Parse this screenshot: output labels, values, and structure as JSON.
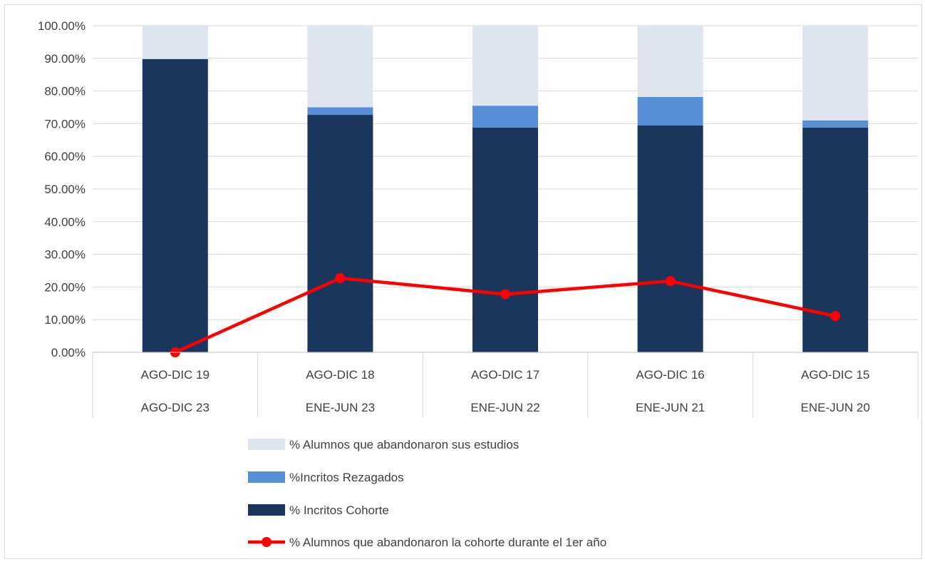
{
  "chart_data": {
    "type": "bar",
    "stacked": true,
    "categories": [
      [
        "AGO-DIC 19",
        "AGO-DIC 23"
      ],
      [
        "AGO-DIC 18",
        "ENE-JUN 23"
      ],
      [
        "AGO-DIC 17",
        "ENE-JUN 22"
      ],
      [
        "AGO-DIC 16",
        "ENE-JUN 21"
      ],
      [
        "AGO-DIC 15",
        "ENE-JUN 20"
      ]
    ],
    "ylim": [
      0,
      100
    ],
    "yticks": [
      "0.00%",
      "10.00%",
      "20.00%",
      "30.00%",
      "40.00%",
      "50.00%",
      "60.00%",
      "70.00%",
      "80.00%",
      "90.00%",
      "100.00%"
    ],
    "grid": true,
    "legend_position": "bottom",
    "series": [
      {
        "name": "% Incritos Cohorte",
        "kind": "bar",
        "color": "#1b365d",
        "values": [
          89.8,
          72.7,
          68.8,
          69.5,
          68.8
        ]
      },
      {
        "name": "%Incritos Rezagados",
        "kind": "bar",
        "color": "#568fd6",
        "values": [
          0,
          2.3,
          6.7,
          8.7,
          2.2
        ]
      },
      {
        "name": "% Alumnos que abandonaron sus estudios",
        "kind": "bar",
        "color": "#dce5f0",
        "values": [
          10.2,
          25.0,
          24.5,
          21.8,
          29.0
        ]
      },
      {
        "name": "% Alumnos que abandonaron la cohorte durante el 1er año",
        "kind": "line",
        "color": "#ff0000",
        "values": [
          0.0,
          22.7,
          17.8,
          21.8,
          11.1
        ]
      }
    ],
    "legend_order": [
      "% Alumnos que abandonaron sus estudios",
      "%Incritos Rezagados",
      "% Incritos Cohorte",
      "% Alumnos que abandonaron la cohorte durante el 1er año"
    ]
  }
}
